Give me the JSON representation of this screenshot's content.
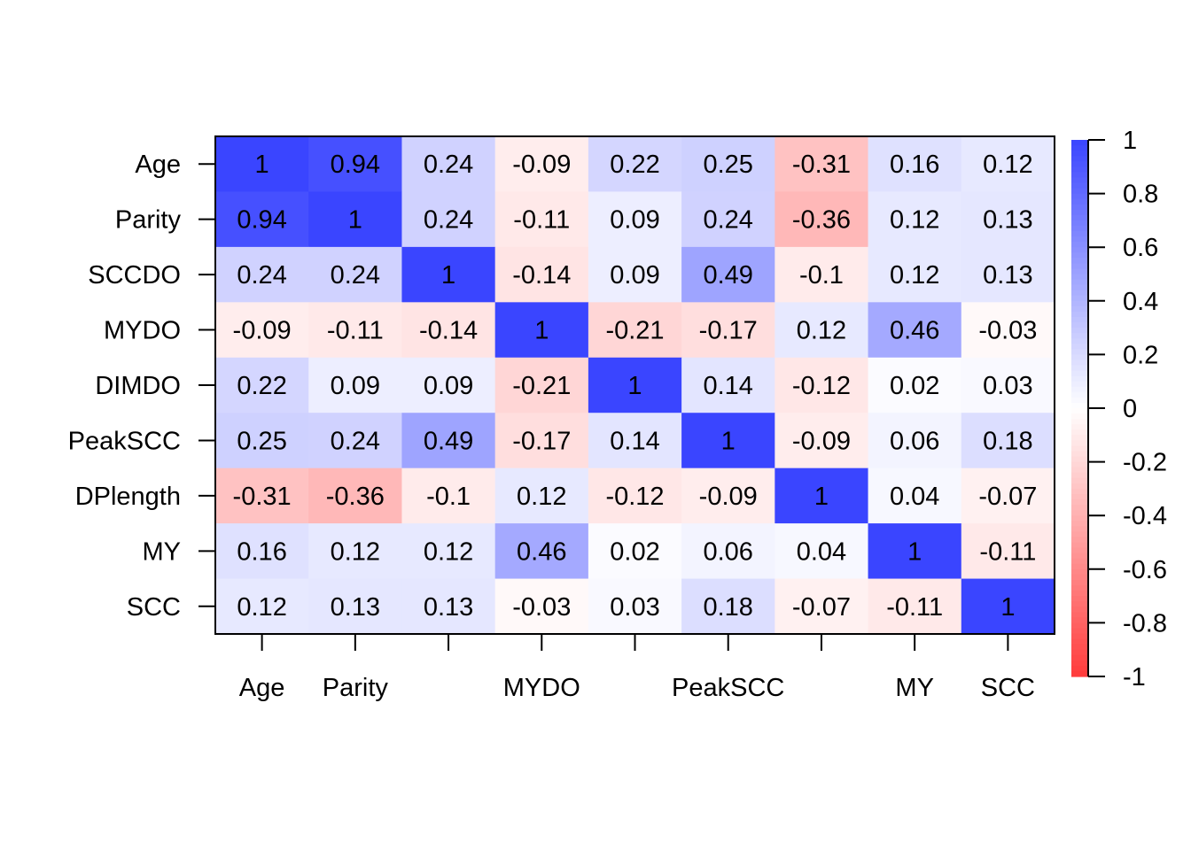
{
  "chart_data": {
    "type": "heatmap",
    "title": "",
    "xlabel": "",
    "ylabel": "",
    "row_labels": [
      "Age",
      "Parity",
      "SCCDO",
      "MYDO",
      "DIMDO",
      "PeakSCC",
      "DPlength",
      "MY",
      "SCC"
    ],
    "column_labels_shown": [
      "Age",
      "Parity",
      "",
      "MYDO",
      "",
      "PeakSCC",
      "",
      "MY",
      "SCC"
    ],
    "values": [
      [
        "1",
        "0.94",
        "0.24",
        "-0.09",
        "0.22",
        "0.25",
        "-0.31",
        "0.16",
        "0.12"
      ],
      [
        "0.94",
        "1",
        "0.24",
        "-0.11",
        "0.09",
        "0.24",
        "-0.36",
        "0.12",
        "0.13"
      ],
      [
        "0.24",
        "0.24",
        "1",
        "-0.14",
        "0.09",
        "0.49",
        "-0.1",
        "0.12",
        "0.13"
      ],
      [
        "-0.09",
        "-0.11",
        "-0.14",
        "1",
        "-0.21",
        "-0.17",
        "0.12",
        "0.46",
        "-0.03"
      ],
      [
        "0.22",
        "0.09",
        "0.09",
        "-0.21",
        "1",
        "0.14",
        "-0.12",
        "0.02",
        "0.03"
      ],
      [
        "0.25",
        "0.24",
        "0.49",
        "-0.17",
        "0.14",
        "1",
        "-0.09",
        "0.06",
        "0.18"
      ],
      [
        "-0.31",
        "-0.36",
        "-0.1",
        "0.12",
        "-0.12",
        "-0.09",
        "1",
        "0.04",
        "-0.07"
      ],
      [
        "0.16",
        "0.12",
        "0.12",
        "0.46",
        "0.02",
        "0.06",
        "0.04",
        "1",
        "-0.11"
      ],
      [
        "0.12",
        "0.13",
        "0.13",
        "-0.03",
        "0.03",
        "0.18",
        "-0.07",
        "-0.11",
        "1"
      ]
    ],
    "color_scale": {
      "range": [
        -1,
        1
      ],
      "low_color": "#ff3b3b",
      "mid_color": "#ffffff",
      "high_color": "#3a45ff",
      "tick_labels": [
        "1",
        "0.8",
        "0.6",
        "0.4",
        "0.2",
        "0",
        "-0.2",
        "-0.4",
        "-0.6",
        "-0.8",
        "-1"
      ]
    },
    "legend_position": "right"
  }
}
